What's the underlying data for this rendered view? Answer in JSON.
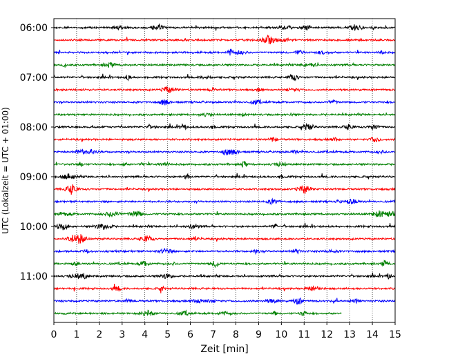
{
  "chart_data": {
    "type": "line",
    "title": "",
    "xlabel": "Zeit  [min]",
    "ylabel": "UTC (Lokalzeit = UTC + 01:00)",
    "xlim": [
      0,
      15
    ],
    "x_ticks": [
      "0",
      "1",
      "2",
      "3",
      "4",
      "5",
      "6",
      "7",
      "8",
      "9",
      "10",
      "11",
      "12",
      "13",
      "14",
      "15"
    ],
    "y_ticks": [
      "06:00",
      "07:00",
      "08:00",
      "09:00",
      "10:00",
      "11:00"
    ],
    "grid": "vertical dotted",
    "color_cycle": [
      "#000000",
      "#ff0000",
      "#0000ff",
      "#008000"
    ],
    "series": [
      {
        "start": "06:00",
        "end_min": 15,
        "color": "#000000"
      },
      {
        "start": "06:15",
        "end_min": 15,
        "color": "#ff0000"
      },
      {
        "start": "06:30",
        "end_min": 15,
        "color": "#0000ff"
      },
      {
        "start": "06:45",
        "end_min": 15,
        "color": "#008000"
      },
      {
        "start": "07:00",
        "end_min": 15,
        "color": "#000000"
      },
      {
        "start": "07:15",
        "end_min": 15,
        "color": "#ff0000"
      },
      {
        "start": "07:30",
        "end_min": 15,
        "color": "#0000ff"
      },
      {
        "start": "07:45",
        "end_min": 15,
        "color": "#008000"
      },
      {
        "start": "08:00",
        "end_min": 15,
        "color": "#000000"
      },
      {
        "start": "08:15",
        "end_min": 15,
        "color": "#ff0000"
      },
      {
        "start": "08:30",
        "end_min": 15,
        "color": "#0000ff"
      },
      {
        "start": "08:45",
        "end_min": 15,
        "color": "#008000"
      },
      {
        "start": "09:00",
        "end_min": 15,
        "color": "#000000"
      },
      {
        "start": "09:15",
        "end_min": 15,
        "color": "#ff0000"
      },
      {
        "start": "09:30",
        "end_min": 15,
        "color": "#0000ff"
      },
      {
        "start": "09:45",
        "end_min": 15,
        "color": "#008000"
      },
      {
        "start": "10:00",
        "end_min": 15,
        "color": "#000000"
      },
      {
        "start": "10:15",
        "end_min": 15,
        "color": "#ff0000"
      },
      {
        "start": "10:30",
        "end_min": 15,
        "color": "#0000ff"
      },
      {
        "start": "10:45",
        "end_min": 15,
        "color": "#008000"
      },
      {
        "start": "11:00",
        "end_min": 15,
        "color": "#000000"
      },
      {
        "start": "11:15",
        "end_min": 15,
        "color": "#ff0000"
      },
      {
        "start": "11:30",
        "end_min": 15,
        "color": "#0000ff"
      },
      {
        "start": "11:45",
        "end_min": 12.65,
        "color": "#008000"
      }
    ]
  }
}
